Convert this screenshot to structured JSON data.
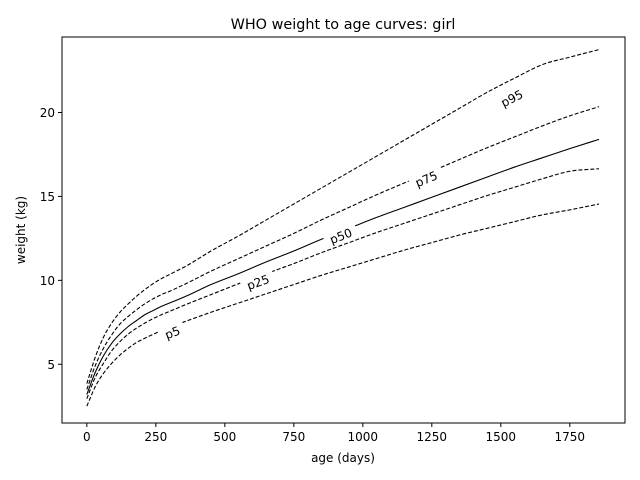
{
  "chart_data": {
    "type": "line",
    "title": "WHO weight to age curves: girl",
    "xlabel": "age (days)",
    "ylabel": "weight (kg)",
    "xlim": [
      -90,
      1950
    ],
    "ylim": [
      1.5,
      24.5
    ],
    "xticks": [
      0,
      250,
      500,
      750,
      1000,
      1250,
      1500,
      1750
    ],
    "yticks": [
      5,
      10,
      15,
      20
    ],
    "grid": false,
    "legend": "none",
    "x": [
      0,
      30,
      60,
      90,
      120,
      150,
      180,
      210,
      240,
      270,
      300,
      365,
      450,
      550,
      650,
      750,
      850,
      950,
      1050,
      1150,
      1250,
      1350,
      1450,
      1550,
      1650,
      1750,
      1856
    ],
    "series": [
      {
        "name": "p5",
        "line_style": "dashed",
        "color": "#000000",
        "values": [
          2.5,
          3.65,
          4.45,
          5.05,
          5.55,
          5.95,
          6.3,
          6.55,
          6.78,
          7.0,
          7.2,
          7.6,
          8.1,
          8.65,
          9.2,
          9.75,
          10.3,
          10.8,
          11.3,
          11.8,
          12.25,
          12.7,
          13.1,
          13.5,
          13.9,
          14.2,
          14.55
        ]
      },
      {
        "name": "p25",
        "line_style": "dashed",
        "color": "#000000",
        "values": [
          2.95,
          4.2,
          5.05,
          5.8,
          6.35,
          6.8,
          7.15,
          7.45,
          7.72,
          7.95,
          8.15,
          8.6,
          9.15,
          9.8,
          10.4,
          11.0,
          11.65,
          12.25,
          12.85,
          13.4,
          13.95,
          14.5,
          15.05,
          15.55,
          16.05,
          16.5,
          16.65
        ]
      },
      {
        "name": "p50",
        "line_style": "solid",
        "color": "#000000",
        "values": [
          3.2,
          4.5,
          5.5,
          6.25,
          6.8,
          7.25,
          7.6,
          7.95,
          8.2,
          8.45,
          8.65,
          9.1,
          9.75,
          10.4,
          11.1,
          11.75,
          12.45,
          13.1,
          13.75,
          14.35,
          14.95,
          15.55,
          16.15,
          16.75,
          17.3,
          17.85,
          18.4
        ]
      },
      {
        "name": "p75",
        "line_style": "dashed",
        "color": "#000000",
        "values": [
          3.5,
          4.9,
          5.95,
          6.75,
          7.4,
          7.85,
          8.25,
          8.6,
          8.9,
          9.15,
          9.35,
          9.85,
          10.55,
          11.3,
          12.05,
          12.8,
          13.6,
          14.35,
          15.1,
          15.8,
          16.5,
          17.2,
          17.9,
          18.55,
          19.2,
          19.8,
          20.35
        ]
      },
      {
        "name": "p95",
        "line_style": "dashed",
        "color": "#000000",
        "values": [
          3.85,
          5.4,
          6.6,
          7.45,
          8.1,
          8.6,
          9.05,
          9.45,
          9.8,
          10.1,
          10.35,
          10.9,
          11.75,
          12.65,
          13.6,
          14.55,
          15.5,
          16.45,
          17.4,
          18.35,
          19.3,
          20.25,
          21.2,
          22.05,
          22.85,
          23.3,
          23.75
        ]
      }
    ],
    "curve_labels": [
      {
        "text": "p5",
        "x": 310,
        "y": 6.9
      },
      {
        "text": "p25",
        "x": 620,
        "y": 9.9
      },
      {
        "text": "p50",
        "x": 920,
        "y": 12.65
      },
      {
        "text": "p75",
        "x": 1230,
        "y": 16.05
      },
      {
        "text": "p95",
        "x": 1540,
        "y": 20.85
      }
    ]
  }
}
